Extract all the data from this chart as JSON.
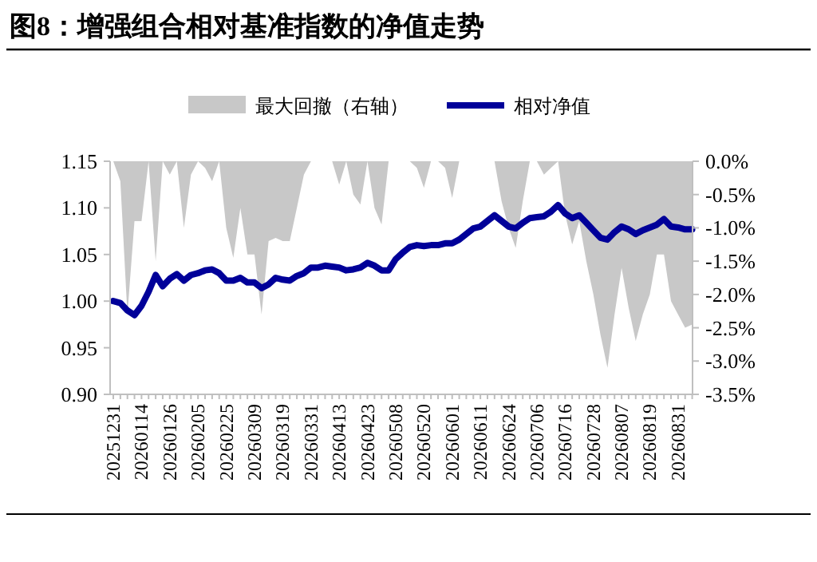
{
  "chart_data": {
    "type": "line",
    "title": "图8：增强组合相对基准指数的净值走势",
    "categories": [
      "20251231",
      null,
      null,
      null,
      "20260114",
      null,
      null,
      null,
      "20260126",
      null,
      null,
      null,
      "20260205",
      null,
      null,
      null,
      "20260225",
      null,
      null,
      null,
      "20260309",
      null,
      null,
      null,
      "20260319",
      null,
      null,
      null,
      "20260331",
      null,
      null,
      null,
      "20260413",
      null,
      null,
      null,
      "20260423",
      null,
      null,
      null,
      "20260508",
      null,
      null,
      null,
      "20260520",
      null,
      null,
      null,
      "20260601",
      null,
      null,
      null,
      "20260611",
      null,
      null,
      null,
      "20260624",
      null,
      null,
      null,
      "20260706",
      null,
      null,
      null,
      "20260716",
      null,
      null,
      null,
      "20260728",
      null,
      null,
      null,
      "20260807",
      null,
      null,
      null,
      "20260819",
      null,
      null,
      null,
      "20260831",
      null,
      null
    ],
    "series": [
      {
        "name": "最大回撤（右轴）",
        "type": "area",
        "axis": "y2",
        "color": "#c8c8c8",
        "values": [
          0,
          -0.3,
          -2.3,
          -0.9,
          -0.9,
          0,
          -1.5,
          0,
          -0.2,
          0,
          -1.0,
          -0.2,
          0,
          -0.1,
          -0.3,
          0,
          -1.0,
          -1.45,
          -0.7,
          -1.4,
          -1.4,
          -2.3,
          -1.2,
          -1.15,
          -1.2,
          -1.2,
          -0.7,
          -0.2,
          0,
          0,
          0,
          0,
          -0.35,
          0,
          -0.5,
          -0.65,
          0,
          -0.7,
          -0.95,
          0,
          0,
          0,
          0,
          -0.1,
          -0.4,
          0,
          0,
          -0.1,
          -0.55,
          0,
          0,
          0,
          0,
          0,
          0,
          -0.6,
          -1.0,
          -1.3,
          -0.6,
          0,
          0,
          -0.2,
          -0.1,
          0,
          -0.8,
          -1.25,
          -0.9,
          -1.5,
          -2.0,
          -2.6,
          -3.1,
          -2.3,
          -1.6,
          -2.2,
          -2.7,
          -2.3,
          -2.0,
          -1.4,
          -1.4,
          -2.1,
          -2.3,
          -2.5,
          -2.45
        ]
      },
      {
        "name": "相对净值",
        "color": "#000099",
        "values": [
          1.0,
          0.998,
          0.99,
          0.985,
          0.995,
          1.01,
          1.028,
          1.016,
          1.024,
          1.029,
          1.022,
          1.028,
          1.03,
          1.033,
          1.034,
          1.03,
          1.022,
          1.022,
          1.025,
          1.02,
          1.02,
          1.014,
          1.018,
          1.025,
          1.023,
          1.022,
          1.027,
          1.03,
          1.036,
          1.036,
          1.038,
          1.037,
          1.036,
          1.033,
          1.034,
          1.036,
          1.041,
          1.038,
          1.033,
          1.033,
          1.045,
          1.052,
          1.058,
          1.06,
          1.059,
          1.06,
          1.06,
          1.062,
          1.062,
          1.066,
          1.072,
          1.078,
          1.08,
          1.086,
          1.092,
          1.086,
          1.08,
          1.078,
          1.084,
          1.089,
          1.09,
          1.091,
          1.096,
          1.103,
          1.094,
          1.089,
          1.092,
          1.084,
          1.076,
          1.068,
          1.066,
          1.074,
          1.08,
          1.077,
          1.072,
          1.076,
          1.079,
          1.082,
          1.088,
          1.08,
          1.079,
          1.077,
          1.077
        ]
      }
    ],
    "ylim": [
      0.9,
      1.15
    ],
    "yticks": [
      {
        "value": 0.9,
        "label": "0.90"
      },
      {
        "value": 0.95,
        "label": "0.95"
      },
      {
        "value": 1.0,
        "label": "1.00"
      },
      {
        "value": 1.05,
        "label": "1.05"
      },
      {
        "value": 1.1,
        "label": "1.10"
      },
      {
        "value": 1.15,
        "label": "1.15"
      }
    ],
    "y2lim": [
      -3.5,
      0
    ],
    "y2ticks": [
      {
        "value": -3.5,
        "label": "-3.5%"
      },
      {
        "value": -3.0,
        "label": "-3.0%"
      },
      {
        "value": -2.5,
        "label": "-2.5%"
      },
      {
        "value": -2.0,
        "label": "-2.0%"
      },
      {
        "value": -1.5,
        "label": "-1.5%"
      },
      {
        "value": -1.0,
        "label": "-1.0%"
      },
      {
        "value": -0.5,
        "label": "-0.5%"
      },
      {
        "value": 0,
        "label": "0.0%"
      }
    ],
    "legend": "top",
    "grid": false
  }
}
